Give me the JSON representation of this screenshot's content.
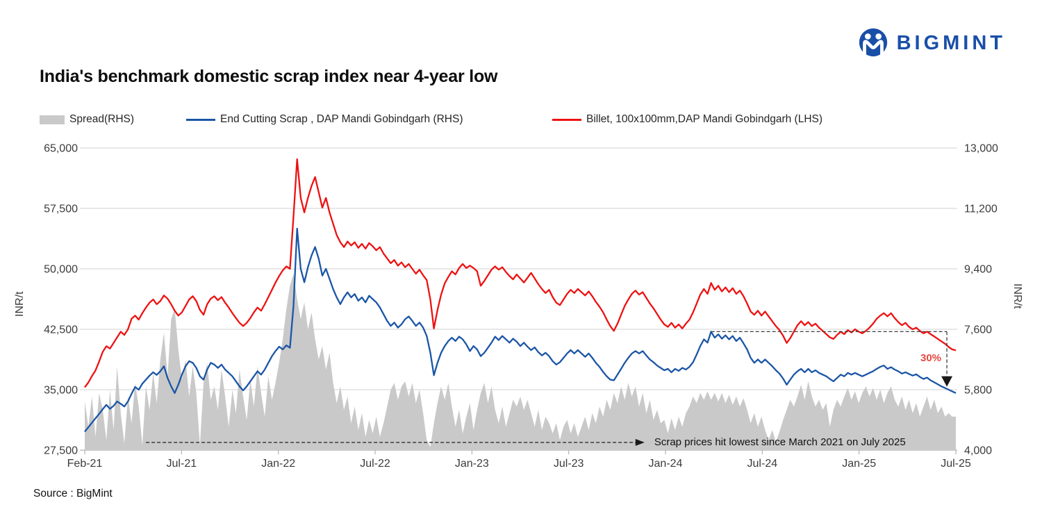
{
  "page": {
    "title": "India's benchmark domestic scrap index near 4-year low",
    "source": "Source : BigMint",
    "logo_text": "BIGMINT",
    "brand_color": "#1a4fa8"
  },
  "legend": {
    "spread": "Spread(RHS)",
    "scrap": "End Cutting Scrap , DAP Mandi Gobindgarh (RHS)",
    "billet": "Billet, 100x100mm,DAP Mandi Gobindgarh (LHS)"
  },
  "chart_data": {
    "type": "line",
    "title": "India's benchmark domestic scrap index near 4-year low",
    "x_axis": {
      "labels": [
        "Feb-21",
        "Jul-21",
        "Jan-22",
        "Jul-22",
        "Jan-23",
        "Jul-23",
        "Jan-24",
        "Jul-24",
        "Jan-25",
        "Jul-25"
      ],
      "grid": false
    },
    "y_left": {
      "label": "INR/t",
      "min": 27500,
      "max": 65000,
      "ticks": [
        {
          "label": "65,000",
          "value": 65000
        },
        {
          "label": "57,500",
          "value": 57500
        },
        {
          "label": "50,000",
          "value": 50000
        },
        {
          "label": "42,500",
          "value": 42500
        },
        {
          "label": "35,000",
          "value": 35000
        },
        {
          "label": "27,500",
          "value": 27500
        }
      ]
    },
    "y_right": {
      "label": "INR/t",
      "min": 4000,
      "max": 13000,
      "ticks": [
        {
          "label": "13,000",
          "value": 13000
        },
        {
          "label": "11,200",
          "value": 11200
        },
        {
          "label": "9,400",
          "value": 9400
        },
        {
          "label": "7,600",
          "value": 7600
        },
        {
          "label": "5,800",
          "value": 5800
        },
        {
          "label": "4,000",
          "value": 4000
        }
      ]
    },
    "grid_color": "#d9d9d9",
    "axis_line_color": "#b3b3b3",
    "series": [
      {
        "name": "Spread(RHS)",
        "axis": "right",
        "kind": "area",
        "color": "#c9c9c9",
        "values": [
          5450,
          4700,
          5600,
          4400,
          5700,
          5200,
          4300,
          5800,
          4600,
          6500,
          5100,
          4200,
          5600,
          4800,
          6000,
          5300,
          4150,
          5900,
          5200,
          6300,
          5400,
          6700,
          7500,
          6200,
          7900,
          8200,
          7000,
          6100,
          6700,
          5600,
          6500,
          5700,
          4150,
          6000,
          6600,
          5500,
          5900,
          5200,
          6400,
          5600,
          4700,
          5800,
          5100,
          6400,
          5600,
          4900,
          6100,
          5300,
          6500,
          5700,
          5000,
          6200,
          5500,
          6000,
          6600,
          7300,
          8200,
          8900,
          9250,
          8500,
          7900,
          8400,
          7600,
          8100,
          7300,
          6700,
          7100,
          6400,
          6900,
          6000,
          5400,
          5900,
          5200,
          5600,
          4800,
          5300,
          4600,
          5100,
          4400,
          4900,
          4500,
          5000,
          4400,
          4800,
          5300,
          5800,
          6000,
          5500,
          5900,
          6050,
          5600,
          6000,
          5400,
          5800,
          5100,
          4300,
          4100,
          4800,
          5400,
          5900,
          5500,
          6000,
          5300,
          4700,
          5200,
          4500,
          5000,
          5400,
          4600,
          5200,
          5700,
          6000,
          5400,
          5900,
          5200,
          4800,
          5300,
          4700,
          5100,
          5500,
          5300,
          5600,
          5200,
          5500,
          5100,
          4700,
          5200,
          4600,
          5000,
          4800,
          4500,
          4800,
          4300,
          4700,
          4900,
          4500,
          4800,
          4400,
          4700,
          5000,
          4600,
          5100,
          4800,
          5300,
          5000,
          5500,
          5200,
          5700,
          5400,
          5900,
          5500,
          6000,
          5600,
          5900,
          5300,
          5700,
          5100,
          5500,
          4900,
          5200,
          4800,
          4900,
          4500,
          4950,
          4600,
          5000,
          4700,
          5100,
          5300,
          5600,
          5400,
          5700,
          5500,
          5750,
          5500,
          5700,
          5450,
          5700,
          5400,
          5650,
          5350,
          5600,
          5300,
          5550,
          5200,
          4800,
          5100,
          4700,
          5000,
          4600,
          4300,
          4600,
          4250,
          4550,
          4900,
          5200,
          5500,
          5300,
          5600,
          5950,
          5500,
          6050,
          5600,
          5300,
          5500,
          5200,
          5400,
          4700,
          5200,
          5500,
          5300,
          5600,
          5850,
          5500,
          5750,
          5400,
          5700,
          5900,
          5600,
          5850,
          5500,
          5800,
          5400,
          5700,
          5900,
          5500,
          5300,
          5600,
          5200,
          5500,
          5100,
          5400,
          5000,
          5300,
          5600,
          5200,
          5500,
          5100,
          5300,
          5000,
          5100,
          5000,
          5000
        ]
      },
      {
        "name": "End Cutting Scrap , DAP Mandi Gobindgarh (RHS)",
        "axis": "right",
        "kind": "line",
        "color": "#1b55a6",
        "values": [
          4550,
          4680,
          4820,
          4950,
          5080,
          5220,
          5350,
          5230,
          5320,
          5450,
          5380,
          5300,
          5450,
          5680,
          5880,
          5800,
          5980,
          6100,
          6220,
          6320,
          6240,
          6350,
          6500,
          6150,
          5900,
          5700,
          5950,
          6250,
          6500,
          6650,
          6600,
          6450,
          6200,
          6100,
          6400,
          6600,
          6550,
          6450,
          6550,
          6400,
          6300,
          6200,
          6050,
          5900,
          5780,
          5900,
          6050,
          6200,
          6350,
          6250,
          6400,
          6600,
          6800,
          6950,
          7080,
          7000,
          7120,
          7050,
          8300,
          10600,
          9400,
          9000,
          9450,
          9800,
          10050,
          9700,
          9200,
          9400,
          9100,
          8800,
          8550,
          8350,
          8550,
          8700,
          8550,
          8650,
          8450,
          8550,
          8400,
          8600,
          8500,
          8400,
          8250,
          8050,
          7850,
          7700,
          7800,
          7650,
          7750,
          7900,
          7980,
          7850,
          7700,
          7800,
          7650,
          7400,
          6900,
          6230,
          6600,
          6900,
          7100,
          7250,
          7350,
          7250,
          7380,
          7300,
          7150,
          6950,
          7100,
          7000,
          6800,
          6900,
          7050,
          7200,
          7380,
          7280,
          7400,
          7300,
          7200,
          7320,
          7230,
          7100,
          7200,
          7080,
          6980,
          7060,
          6920,
          6820,
          6900,
          6800,
          6650,
          6550,
          6620,
          6750,
          6880,
          6980,
          6880,
          6980,
          6880,
          6780,
          6880,
          6750,
          6600,
          6480,
          6330,
          6200,
          6100,
          6080,
          6250,
          6420,
          6600,
          6750,
          6880,
          6950,
          6880,
          6950,
          6820,
          6700,
          6620,
          6520,
          6450,
          6380,
          6420,
          6320,
          6420,
          6360,
          6450,
          6400,
          6480,
          6620,
          6850,
          7100,
          7300,
          7200,
          7530,
          7350,
          7450,
          7320,
          7420,
          7300,
          7400,
          7250,
          7350,
          7180,
          7000,
          6750,
          6600,
          6700,
          6600,
          6700,
          6600,
          6500,
          6380,
          6280,
          6130,
          5950,
          6100,
          6250,
          6350,
          6420,
          6320,
          6420,
          6320,
          6380,
          6300,
          6250,
          6200,
          6120,
          6050,
          6150,
          6250,
          6200,
          6300,
          6250,
          6300,
          6250,
          6200,
          6250,
          6300,
          6350,
          6420,
          6480,
          6520,
          6420,
          6470,
          6400,
          6350,
          6280,
          6320,
          6270,
          6220,
          6260,
          6180,
          6120,
          6160,
          6080,
          6020,
          5960,
          5900,
          5850,
          5800,
          5750,
          5700
        ]
      },
      {
        "name": "Billet, 100x100mm,DAP Mandi Gobindgarh (LHS)",
        "axis": "left",
        "kind": "line",
        "color": "#ee1111",
        "values": [
          35300,
          35900,
          36700,
          37400,
          38500,
          39700,
          40400,
          40100,
          40800,
          41500,
          42200,
          41800,
          42500,
          43800,
          44200,
          43700,
          44500,
          45200,
          45800,
          46200,
          45600,
          46000,
          46700,
          46300,
          45600,
          44800,
          44200,
          44600,
          45400,
          46200,
          46600,
          46000,
          44900,
          44300,
          45600,
          46300,
          46600,
          46100,
          46500,
          45800,
          45200,
          44500,
          43900,
          43300,
          42900,
          43300,
          43900,
          44600,
          45200,
          44800,
          45600,
          46500,
          47400,
          48300,
          49100,
          49800,
          50300,
          50000,
          56500,
          63600,
          58800,
          57000,
          58800,
          60300,
          61400,
          59500,
          57600,
          58800,
          57000,
          55600,
          54200,
          53300,
          52700,
          53400,
          52900,
          53300,
          52600,
          53100,
          52500,
          53200,
          52800,
          52300,
          52700,
          51900,
          51300,
          50700,
          51100,
          50400,
          50800,
          50200,
          50600,
          50000,
          49400,
          49900,
          49200,
          48600,
          46200,
          42600,
          44900,
          46800,
          48200,
          49000,
          49700,
          49300,
          50100,
          50600,
          50100,
          50400,
          50100,
          49700,
          47900,
          48500,
          49200,
          49900,
          50300,
          49900,
          50200,
          49600,
          49100,
          48700,
          49300,
          48800,
          48300,
          48900,
          49500,
          48800,
          48100,
          47500,
          47000,
          47400,
          46500,
          45800,
          45500,
          46200,
          46900,
          47400,
          47000,
          47500,
          47100,
          46700,
          47200,
          46600,
          45900,
          45300,
          44600,
          43700,
          42900,
          42300,
          43200,
          44300,
          45400,
          46200,
          46900,
          47300,
          46800,
          47100,
          46400,
          45700,
          45100,
          44400,
          43700,
          43100,
          42800,
          43300,
          42700,
          43100,
          42600,
          43200,
          43700,
          44600,
          45700,
          46800,
          47500,
          46900,
          48250,
          47400,
          47900,
          47200,
          47700,
          47100,
          47600,
          46900,
          47300,
          46600,
          45700,
          44700,
          44300,
          44800,
          44200,
          44700,
          44100,
          43500,
          42900,
          42400,
          41700,
          40800,
          41400,
          42200,
          43000,
          43500,
          43000,
          43400,
          42900,
          43200,
          42700,
          42300,
          41900,
          41500,
          41300,
          41800,
          42200,
          41900,
          42400,
          42100,
          42500,
          42200,
          42000,
          42300,
          42700,
          43200,
          43800,
          44200,
          44500,
          44100,
          44500,
          43900,
          43400,
          43000,
          43300,
          42800,
          42500,
          42700,
          42300,
          42000,
          42200,
          41900,
          41600,
          41300,
          41000,
          40700,
          40300,
          40000,
          39900
        ]
      }
    ],
    "annotations": {
      "lowest": {
        "text": "Scrap prices hit lowest since March 2021 on July 2025",
        "level_right": 4230,
        "from_week": 17,
        "to_week": 153,
        "line_color": "#3c3c3c"
      },
      "drop": {
        "label": "30%",
        "color": "#e8473f",
        "level_right": 7530,
        "from_week": 174,
        "at_week": 239.5,
        "drop_to_right": 6200,
        "line_color": "#3c3c3c"
      }
    }
  }
}
